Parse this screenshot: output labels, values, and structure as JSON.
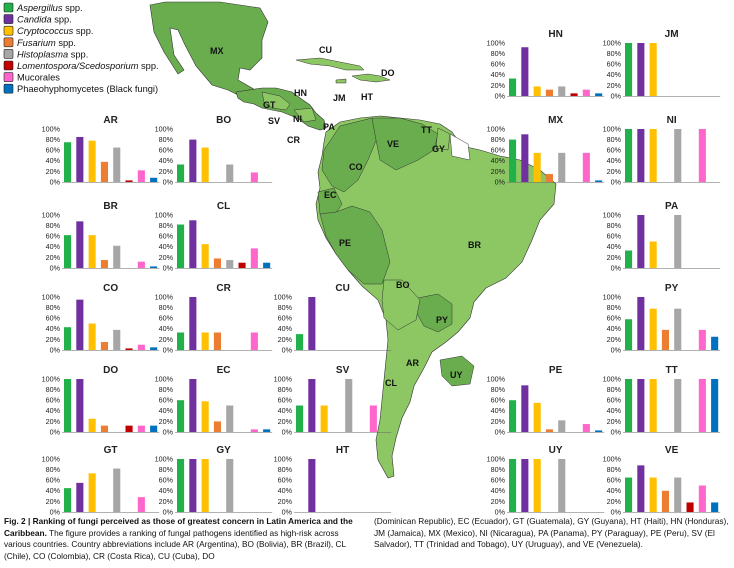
{
  "legend": {
    "items": [
      {
        "label": "Aspergillus spp.",
        "color": "#22b04b",
        "italic_part": "Aspergillus"
      },
      {
        "label": "Candida spp.",
        "color": "#7030a0",
        "italic_part": "Candida"
      },
      {
        "label": "Cryptococcus spp.",
        "color": "#ffc000",
        "italic_part": "Cryptococcus"
      },
      {
        "label": "Fusarium spp.",
        "color": "#ed7d31",
        "italic_part": "Fusarium"
      },
      {
        "label": "Histoplasma spp.",
        "color": "#a6a6a6",
        "italic_part": "Histoplasma"
      },
      {
        "label": "Lomentospora/Scedosporium spp.",
        "color": "#c00000",
        "italic_part": "Lomentospora/Scedosporium"
      },
      {
        "label": "Mucorales",
        "color": "#ff66cc",
        "italic_part": ""
      },
      {
        "label": "Phaeohyphomycetes (Black fungi)",
        "color": "#0070c0",
        "italic_part": ""
      }
    ]
  },
  "map_labels": [
    "MX",
    "CU",
    "DO",
    "HT",
    "JM",
    "HN",
    "GT",
    "SV",
    "NI",
    "CR",
    "PA",
    "VE",
    "TT",
    "GY",
    "CO",
    "EC",
    "PE",
    "BR",
    "BO",
    "PY",
    "AR",
    "CL",
    "UY"
  ],
  "caption": {
    "fig_label": "Fig. 2 | Ranking of fungi perceived as those of greatest concern in Latin America and the Caribbean.",
    "text_left": "The figure provides a ranking of fungal pathogens identified as high-risk across various countries. Country abbreviations include AR (Argentina), BO (Bolivia), BR (Brazil), CL (Chile), CO (Colombia), CR (Costa Rica), CU (Cuba), DO",
    "text_right": "(Dominican Republic), EC (Ecuador), GT (Guatemala), GY (Guyana), HT (Haiti), HN (Honduras), JM (Jamaica), MX (Mexico), NI (Nicaragua), PA (Panama), PY (Paraguay), PE (Peru), SV (El Salvador), TT (Trinidad and Tobago), UY (Uruguay), and VE (Venezuela)."
  },
  "chart_data": {
    "type": "bar",
    "categories": [
      "Aspergillus spp.",
      "Candida spp.",
      "Cryptococcus spp.",
      "Fusarium spp.",
      "Histoplasma spp.",
      "Lomentospora/Scedosporium spp.",
      "Mucorales",
      "Phaeohyphomycetes (Black fungi)"
    ],
    "y_ticks": [
      "0%",
      "20%",
      "40%",
      "60%",
      "80%",
      "100%"
    ],
    "ylim": [
      0,
      100
    ],
    "charts": [
      {
        "name": "AR",
        "values": [
          75,
          85,
          78,
          38,
          65,
          3,
          22,
          8
        ]
      },
      {
        "name": "BO",
        "values": [
          33,
          80,
          65,
          0,
          33,
          0,
          18,
          0
        ]
      },
      {
        "name": "BR",
        "values": [
          62,
          88,
          62,
          15,
          42,
          0,
          12,
          3
        ]
      },
      {
        "name": "CL",
        "values": [
          82,
          90,
          45,
          18,
          15,
          10,
          37,
          10
        ]
      },
      {
        "name": "CO",
        "values": [
          43,
          95,
          50,
          15,
          38,
          3,
          10,
          5
        ]
      },
      {
        "name": "CR",
        "values": [
          33,
          100,
          33,
          33,
          0,
          0,
          33,
          0
        ]
      },
      {
        "name": "CU",
        "values": [
          30,
          100,
          0,
          0,
          0,
          0,
          0,
          0
        ]
      },
      {
        "name": "DO",
        "values": [
          100,
          100,
          25,
          12,
          0,
          12,
          12,
          12
        ]
      },
      {
        "name": "EC",
        "values": [
          60,
          100,
          58,
          20,
          50,
          0,
          5,
          5
        ]
      },
      {
        "name": "SV",
        "values": [
          50,
          100,
          50,
          0,
          100,
          0,
          50,
          0
        ]
      },
      {
        "name": "GT",
        "values": [
          45,
          55,
          73,
          0,
          82,
          0,
          28,
          0
        ]
      },
      {
        "name": "GY",
        "values": [
          100,
          100,
          100,
          0,
          100,
          0,
          0,
          0
        ]
      },
      {
        "name": "HT",
        "values": [
          0,
          100,
          0,
          0,
          0,
          0,
          0,
          0
        ]
      },
      {
        "name": "HN",
        "values": [
          33,
          92,
          18,
          12,
          18,
          5,
          12,
          5
        ]
      },
      {
        "name": "JM",
        "values": [
          100,
          100,
          100,
          0,
          0,
          0,
          0,
          0
        ]
      },
      {
        "name": "MX",
        "values": [
          80,
          90,
          55,
          15,
          55,
          0,
          55,
          3
        ]
      },
      {
        "name": "NI",
        "values": [
          100,
          100,
          100,
          0,
          100,
          0,
          100,
          0
        ]
      },
      {
        "name": "PA",
        "values": [
          33,
          100,
          50,
          0,
          100,
          0,
          0,
          0
        ]
      },
      {
        "name": "PY",
        "values": [
          58,
          100,
          78,
          38,
          78,
          0,
          38,
          25
        ]
      },
      {
        "name": "PE",
        "values": [
          60,
          88,
          55,
          5,
          22,
          0,
          15,
          3
        ]
      },
      {
        "name": "TT",
        "values": [
          100,
          100,
          100,
          0,
          100,
          0,
          100,
          100
        ]
      },
      {
        "name": "UY",
        "values": [
          100,
          100,
          100,
          0,
          100,
          0,
          0,
          0
        ]
      },
      {
        "name": "VE",
        "values": [
          65,
          88,
          65,
          40,
          65,
          18,
          50,
          18
        ]
      }
    ]
  }
}
